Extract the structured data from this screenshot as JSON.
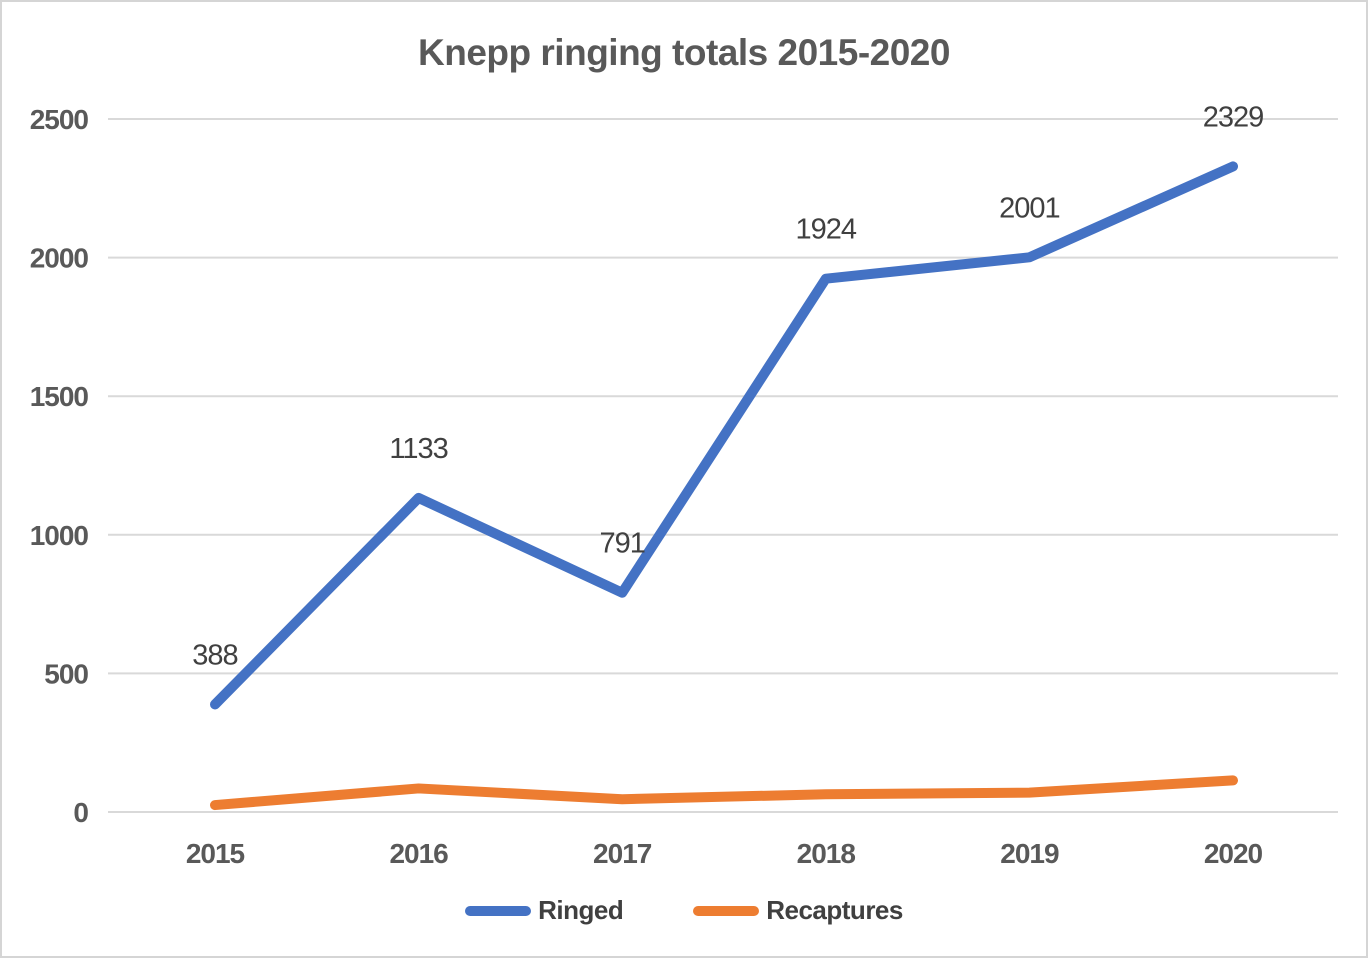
{
  "chart_data": {
    "type": "line",
    "title": "Knepp ringing totals 2015-2020",
    "categories": [
      "2015",
      "2016",
      "2017",
      "2018",
      "2019",
      "2020"
    ],
    "series": [
      {
        "name": "Ringed",
        "color": "#4472C4",
        "values": [
          388,
          1133,
          791,
          1924,
          2001,
          2329
        ],
        "labels": [
          "388",
          "1133",
          "791",
          "1924",
          "2001",
          "2329"
        ]
      },
      {
        "name": "Recaptures",
        "color": "#ED7D31",
        "values": [
          25,
          85,
          46,
          64,
          70,
          114
        ],
        "labels": []
      }
    ],
    "xlabel": "",
    "ylabel": "",
    "ylim": [
      0,
      2500
    ],
    "yticks": [
      0,
      500,
      1000,
      1500,
      2000,
      2500
    ],
    "ytick_labels": [
      "0",
      "500",
      "1000",
      "1500",
      "2000",
      "2500"
    ],
    "grid": true,
    "legend_position": "bottom",
    "colors": {
      "title": "#595959",
      "tick": "#595959",
      "data_label": "#404040",
      "legend_text": "#404040",
      "gridline": "#d9d9d9",
      "background": "#ffffff",
      "border": "#d5d5d5"
    }
  }
}
